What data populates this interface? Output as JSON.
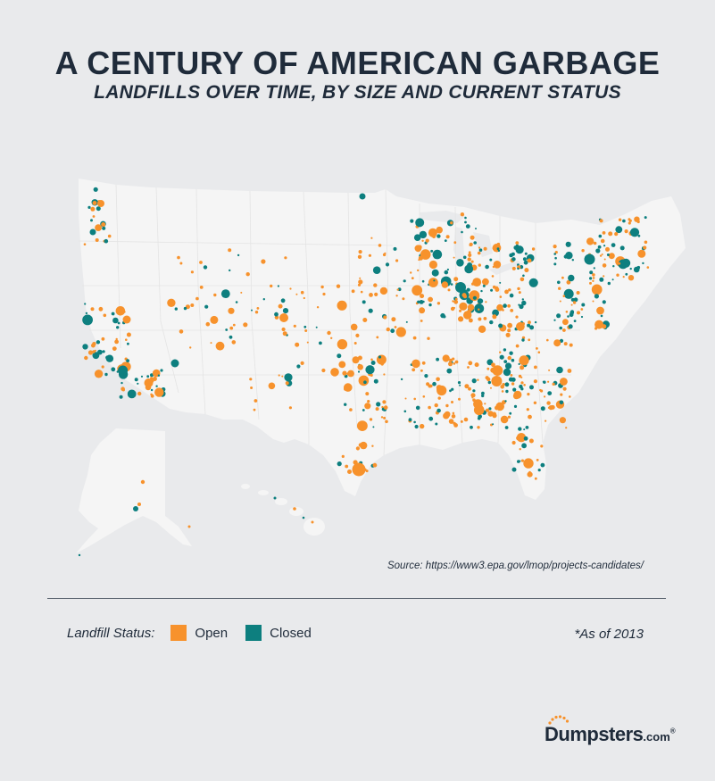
{
  "header": {
    "title": "A CENTURY OF AMERICAN GARBAGE",
    "subtitle": "LANDFILLS OVER TIME, BY SIZE AND CURRENT STATUS"
  },
  "source": "Source: https://www3.epa.gov/lmop/projects-candidates/",
  "legend": {
    "label": "Landfill Status:",
    "items": [
      {
        "label": "Open",
        "color": "#f7922c"
      },
      {
        "label": "Closed",
        "color": "#0d7f7f"
      }
    ]
  },
  "note": "*As of 2013",
  "logo": {
    "main": "Dumpsters",
    "suffix": ".com",
    "mark": "®"
  },
  "colors": {
    "land": "#f5f5f5",
    "background": "#e9eaec",
    "open": "#f7922c",
    "closed": "#0d7f7f"
  }
}
